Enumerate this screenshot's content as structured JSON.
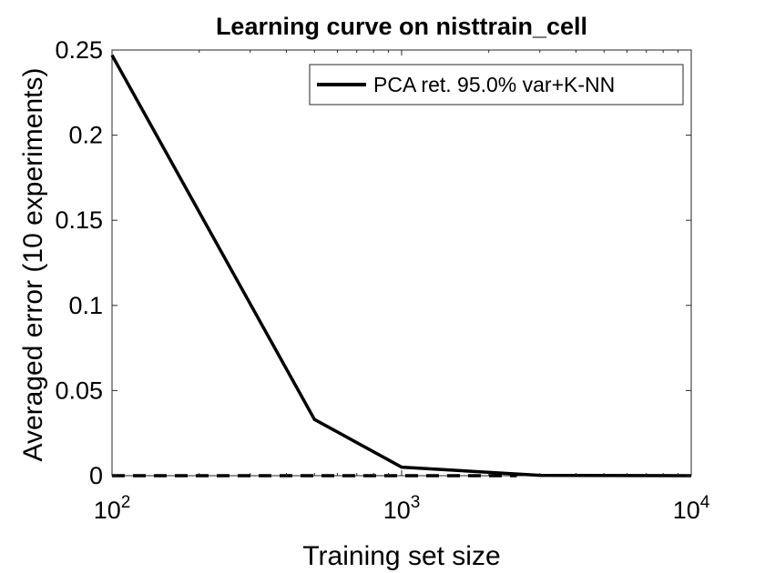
{
  "chart_data": {
    "type": "line",
    "title": "Learning curve on nisttrain_cell",
    "xlabel": "Training set size",
    "ylabel": "Averaged error (10 experiments)",
    "xscale": "log",
    "xlim": [
      100,
      10000
    ],
    "ylim": [
      0,
      0.25
    ],
    "xticks": [
      {
        "value": 100,
        "base": "10",
        "exp": "2"
      },
      {
        "value": 1000,
        "base": "10",
        "exp": "3"
      },
      {
        "value": 10000,
        "base": "10",
        "exp": "4"
      }
    ],
    "yticks": [
      {
        "value": 0,
        "label": "0"
      },
      {
        "value": 0.05,
        "label": "0.05"
      },
      {
        "value": 0.1,
        "label": "0.1"
      },
      {
        "value": 0.15,
        "label": "0.15"
      },
      {
        "value": 0.2,
        "label": "0.2"
      },
      {
        "value": 0.25,
        "label": "0.25"
      }
    ],
    "grid": false,
    "legend_position": "top-right",
    "series": [
      {
        "name": "PCA ret. 95.0% var+K-NN",
        "style": "solid",
        "color": "#000000",
        "x": [
          100,
          500,
          1000,
          3000,
          10000
        ],
        "y": [
          0.247,
          0.033,
          0.005,
          0.0002,
          0.0
        ]
      },
      {
        "style": "dashed",
        "color": "#000000",
        "x": [
          100,
          2500
        ],
        "y": [
          0.0,
          0.0
        ]
      }
    ]
  }
}
